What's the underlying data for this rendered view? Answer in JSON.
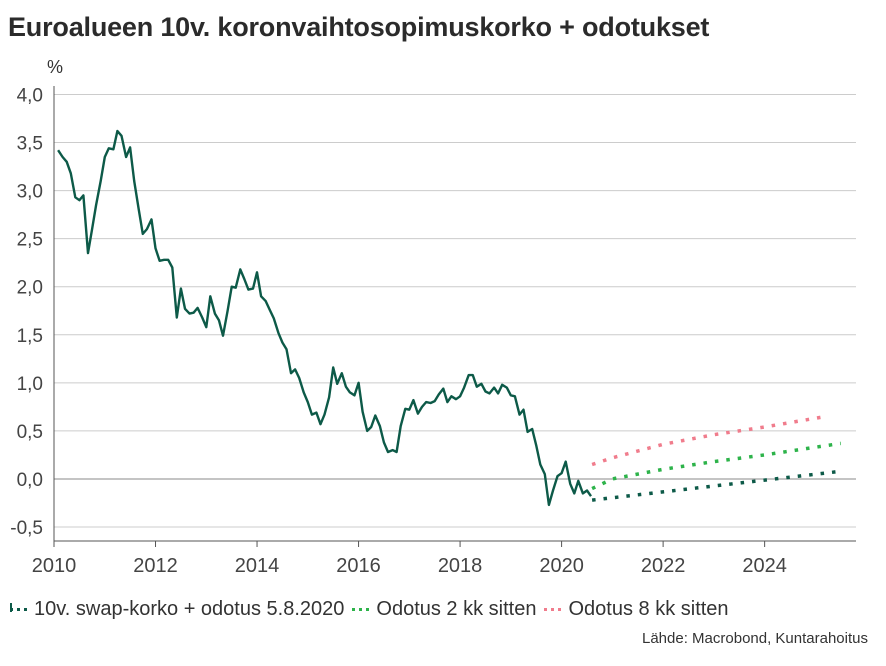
{
  "title": "Euroalueen 10v. koronvaihtosopimuskorko + odotukset",
  "source": "Lähde: Macrobond, Kuntarahoitus",
  "colors": {
    "actual": "#0d5a48",
    "expect_now": "#0d5a48",
    "expect_2m": "#2db34a",
    "expect_8m": "#f07c8c",
    "grid": "#cccccc",
    "zero_line": "#888888"
  },
  "chart_data": {
    "type": "line",
    "title": "Euroalueen 10v. koronvaihtosopimuskorko + odotukset",
    "ylabel": "%",
    "xlim": [
      2010,
      2025.8
    ],
    "ylim": [
      -0.6,
      4.1
    ],
    "x_ticks": [
      2010,
      2012,
      2014,
      2016,
      2018,
      2020,
      2022,
      2024
    ],
    "x_tick_labels": [
      "2010",
      "2012",
      "2014",
      "2016",
      "2018",
      "2020",
      "2022",
      "2024"
    ],
    "y_ticks": [
      -0.5,
      0.0,
      0.5,
      1.0,
      1.5,
      2.0,
      2.5,
      3.0,
      3.5,
      4.0
    ],
    "y_tick_labels": [
      "-0,5",
      "0,0",
      "0,5",
      "1,0",
      "1,5",
      "2,0",
      "2,5",
      "3,0",
      "3,5",
      "4,0"
    ],
    "grid": true,
    "legend_position": "bottom",
    "series": [
      {
        "name": "10v. swap-korko + odotus 5.8.2020",
        "style": "solid",
        "color_key": "actual",
        "x": [
          2010.08,
          2010.17,
          2010.25,
          2010.33,
          2010.42,
          2010.5,
          2010.58,
          2010.67,
          2010.75,
          2010.83,
          2010.92,
          2011.0,
          2011.08,
          2011.17,
          2011.25,
          2011.33,
          2011.42,
          2011.5,
          2011.58,
          2011.67,
          2011.75,
          2011.83,
          2011.92,
          2012.0,
          2012.08,
          2012.17,
          2012.25,
          2012.33,
          2012.42,
          2012.5,
          2012.58,
          2012.67,
          2012.75,
          2012.83,
          2012.92,
          2013.0,
          2013.08,
          2013.17,
          2013.25,
          2013.33,
          2013.42,
          2013.5,
          2013.58,
          2013.67,
          2013.75,
          2013.83,
          2013.92,
          2014.0,
          2014.08,
          2014.17,
          2014.25,
          2014.33,
          2014.42,
          2014.5,
          2014.58,
          2014.67,
          2014.75,
          2014.83,
          2014.92,
          2015.0,
          2015.08,
          2015.17,
          2015.25,
          2015.33,
          2015.42,
          2015.5,
          2015.58,
          2015.67,
          2015.75,
          2015.83,
          2015.92,
          2016.0,
          2016.08,
          2016.17,
          2016.25,
          2016.33,
          2016.42,
          2016.5,
          2016.58,
          2016.67,
          2016.75,
          2016.83,
          2016.92,
          2017.0,
          2017.08,
          2017.17,
          2017.25,
          2017.33,
          2017.42,
          2017.5,
          2017.58,
          2017.67,
          2017.75,
          2017.83,
          2017.92,
          2018.0,
          2018.08,
          2018.17,
          2018.25,
          2018.33,
          2018.42,
          2018.5,
          2018.58,
          2018.67,
          2018.75,
          2018.83,
          2018.92,
          2019.0,
          2019.08,
          2019.17,
          2019.25,
          2019.33,
          2019.42,
          2019.5,
          2019.58,
          2019.67,
          2019.75,
          2019.83,
          2019.92,
          2020.0,
          2020.08,
          2020.17,
          2020.25,
          2020.33,
          2020.42,
          2020.5,
          2020.58
        ],
        "y": [
          3.42,
          3.35,
          3.3,
          3.18,
          2.93,
          2.9,
          2.95,
          2.35,
          2.6,
          2.85,
          3.1,
          3.35,
          3.44,
          3.43,
          3.62,
          3.57,
          3.35,
          3.45,
          3.1,
          2.8,
          2.55,
          2.6,
          2.7,
          2.4,
          2.27,
          2.28,
          2.28,
          2.2,
          1.68,
          1.98,
          1.77,
          1.72,
          1.73,
          1.78,
          1.68,
          1.58,
          1.9,
          1.72,
          1.65,
          1.49,
          1.75,
          2.0,
          1.99,
          2.18,
          2.08,
          1.97,
          1.98,
          2.15,
          1.9,
          1.85,
          1.76,
          1.67,
          1.52,
          1.42,
          1.35,
          1.1,
          1.14,
          1.05,
          0.9,
          0.8,
          0.67,
          0.69,
          0.57,
          0.67,
          0.85,
          1.16,
          0.99,
          1.1,
          0.96,
          0.9,
          0.87,
          1.0,
          0.7,
          0.5,
          0.54,
          0.66,
          0.55,
          0.38,
          0.28,
          0.3,
          0.28,
          0.55,
          0.73,
          0.72,
          0.82,
          0.68,
          0.75,
          0.8,
          0.79,
          0.81,
          0.88,
          0.94,
          0.8,
          0.86,
          0.83,
          0.86,
          0.95,
          1.08,
          1.08,
          0.96,
          0.99,
          0.91,
          0.89,
          0.95,
          0.89,
          0.98,
          0.95,
          0.87,
          0.86,
          0.67,
          0.72,
          0.49,
          0.52,
          0.35,
          0.15,
          0.05,
          -0.27,
          -0.12,
          0.03,
          0.06,
          0.18,
          -0.05,
          -0.15,
          -0.02,
          -0.15,
          -0.12,
          -0.18
        ],
        "expectation_x": [
          2020.6,
          2025.5
        ],
        "expectation_y": [
          -0.22,
          0.08
        ]
      },
      {
        "name": "Odotus 2 kk sitten",
        "style": "dotted",
        "color_key": "expect_2m",
        "x": [
          2020.6,
          2021.0,
          2022.0,
          2023.0,
          2024.0,
          2025.5
        ],
        "y": [
          -0.1,
          0.0,
          0.1,
          0.18,
          0.25,
          0.37
        ]
      },
      {
        "name": "Odotus 8 kk sitten",
        "style": "dotted",
        "color_key": "expect_8m",
        "x": [
          2020.6,
          2021.0,
          2022.0,
          2023.0,
          2024.0,
          2025.2
        ],
        "y": [
          0.15,
          0.22,
          0.36,
          0.46,
          0.54,
          0.65
        ]
      }
    ]
  }
}
